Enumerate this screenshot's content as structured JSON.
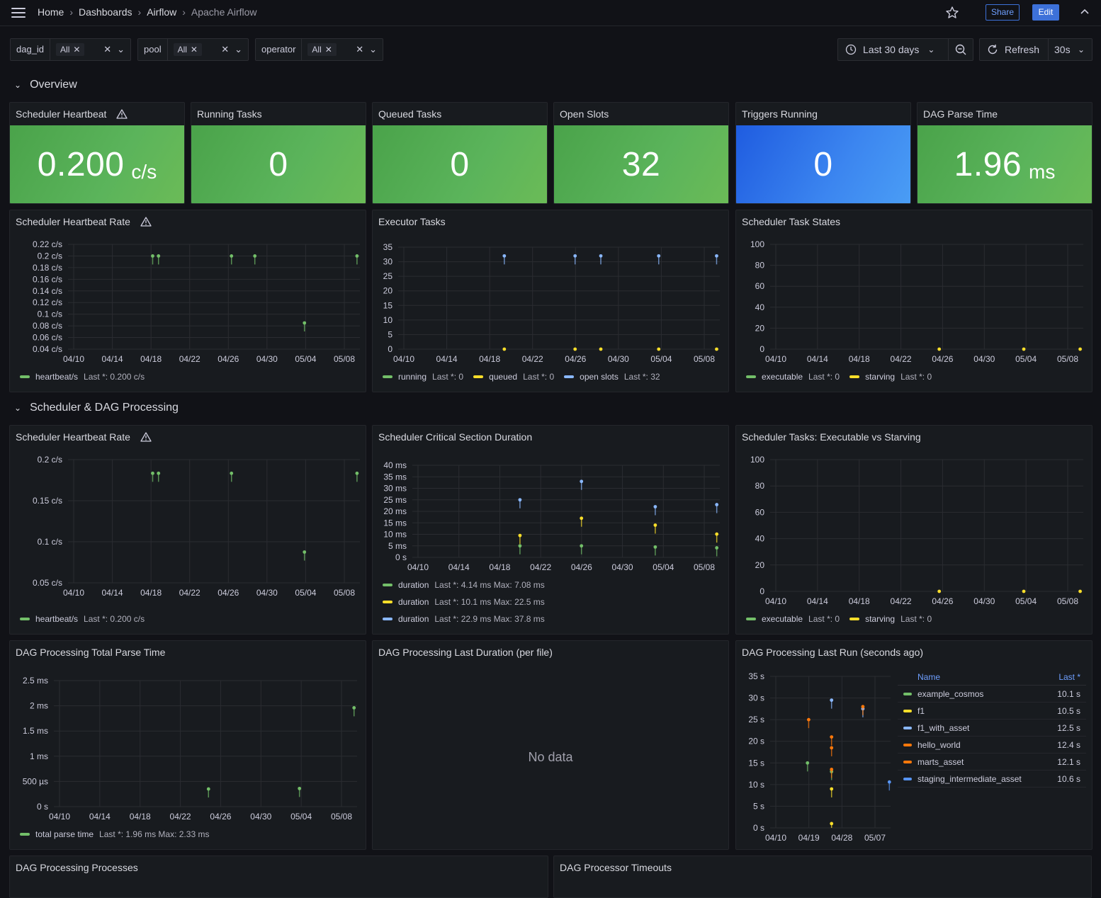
{
  "breadcrumbs": [
    "Home",
    "Dashboards",
    "Airflow",
    "Apache Airflow"
  ],
  "toolbar": {
    "share": "Share",
    "edit": "Edit",
    "time_range": "Last 30 days",
    "refresh": "Refresh",
    "interval": "30s"
  },
  "variables": [
    {
      "label": "dag_id",
      "value": "All"
    },
    {
      "label": "pool",
      "value": "All"
    },
    {
      "label": "operator",
      "value": "All"
    }
  ],
  "rows": {
    "overview": "Overview",
    "scheduler": "Scheduler & DAG Processing"
  },
  "stats": [
    {
      "title": "Scheduler Heartbeat",
      "value": "0.200",
      "unit": "c/s",
      "color": "green",
      "warning": true
    },
    {
      "title": "Running Tasks",
      "value": "0",
      "unit": "",
      "color": "green",
      "warning": false
    },
    {
      "title": "Queued Tasks",
      "value": "0",
      "unit": "",
      "color": "green",
      "warning": false
    },
    {
      "title": "Open Slots",
      "value": "32",
      "unit": "",
      "color": "green",
      "warning": false
    },
    {
      "title": "Triggers Running",
      "value": "0",
      "unit": "",
      "color": "blue",
      "warning": false
    },
    {
      "title": "DAG Parse Time",
      "value": "1.96",
      "unit": "ms",
      "color": "green",
      "warning": false
    }
  ],
  "colors": {
    "green": "#73bf69",
    "yellow": "#fade2a",
    "blue": "#8ab8ff",
    "orange": "#ff780a",
    "blue2": "#5794f2"
  },
  "chart_data": [
    {
      "id": "hb1",
      "type": "line",
      "title": "Scheduler Heartbeat Rate",
      "x": [
        "04/10",
        "04/14",
        "04/18",
        "04/22",
        "04/26",
        "04/30",
        "05/04",
        "05/08"
      ],
      "yticks": [
        "0.04 c/s",
        "0.06 c/s",
        "0.08 c/s",
        "0.1 c/s",
        "0.12 c/s",
        "0.14 c/s",
        "0.16 c/s",
        "0.18 c/s",
        "0.2 c/s",
        "0.22 c/s"
      ],
      "ylim": [
        0.04,
        0.22
      ],
      "series": [
        {
          "name": "heartbeat/s",
          "legend": "Last *: 0.200 c/s",
          "color": "#73bf69",
          "points": [
            [
              0.29,
              0.2
            ],
            [
              0.31,
              0.2
            ],
            [
              0.56,
              0.2
            ],
            [
              0.64,
              0.2
            ],
            [
              0.81,
              0.085
            ],
            [
              0.99,
              0.2
            ]
          ]
        }
      ]
    },
    {
      "id": "exec",
      "type": "line",
      "title": "Executor Tasks",
      "x": [
        "04/10",
        "04/14",
        "04/18",
        "04/22",
        "04/26",
        "04/30",
        "05/04",
        "05/08"
      ],
      "yticks": [
        "0",
        "5",
        "10",
        "15",
        "20",
        "25",
        "30",
        "35"
      ],
      "ylim": [
        0,
        35
      ],
      "series": [
        {
          "name": "running",
          "legend": "Last *: 0",
          "color": "#73bf69",
          "points": []
        },
        {
          "name": "queued",
          "legend": "Last *: 0",
          "color": "#fade2a",
          "points": [
            [
              0.33,
              0
            ],
            [
              0.55,
              0
            ],
            [
              0.63,
              0
            ],
            [
              0.81,
              0
            ],
            [
              0.99,
              0
            ]
          ]
        },
        {
          "name": "open slots",
          "legend": "Last *: 32",
          "color": "#8ab8ff",
          "points": [
            [
              0.33,
              32
            ],
            [
              0.55,
              32
            ],
            [
              0.63,
              32
            ],
            [
              0.81,
              32
            ],
            [
              0.99,
              32
            ]
          ]
        }
      ]
    },
    {
      "id": "states",
      "type": "line",
      "title": "Scheduler Task States",
      "x": [
        "04/10",
        "04/14",
        "04/18",
        "04/22",
        "04/26",
        "04/30",
        "05/04",
        "05/08"
      ],
      "yticks": [
        "0",
        "20",
        "40",
        "60",
        "80",
        "100"
      ],
      "ylim": [
        0,
        100
      ],
      "series": [
        {
          "name": "executable",
          "legend": "Last *: 0",
          "color": "#73bf69",
          "points": []
        },
        {
          "name": "starving",
          "legend": "Last *: 0",
          "color": "#fade2a",
          "points": [
            [
              0.54,
              0
            ],
            [
              0.81,
              0
            ],
            [
              0.99,
              0
            ]
          ]
        }
      ]
    },
    {
      "id": "hb2",
      "type": "line",
      "title": "Scheduler Heartbeat Rate",
      "x": [
        "04/10",
        "04/14",
        "04/18",
        "04/22",
        "04/26",
        "04/30",
        "05/04",
        "05/08"
      ],
      "yticks": [
        "0.05 c/s",
        "0.1 c/s",
        "0.15 c/s",
        "0.2 c/s"
      ],
      "ylim": [
        0.04,
        0.22
      ],
      "series": [
        {
          "name": "heartbeat/s",
          "legend": "Last *: 0.200 c/s",
          "color": "#73bf69",
          "points": [
            [
              0.29,
              0.2
            ],
            [
              0.31,
              0.2
            ],
            [
              0.56,
              0.2
            ],
            [
              0.81,
              0.085
            ],
            [
              0.99,
              0.2
            ]
          ]
        }
      ]
    },
    {
      "id": "crit",
      "type": "line",
      "title": "Scheduler Critical Section Duration",
      "x": [
        "04/10",
        "04/14",
        "04/18",
        "04/22",
        "04/26",
        "04/30",
        "05/04",
        "05/08"
      ],
      "yticks": [
        "0 s",
        "5 ms",
        "10 ms",
        "15 ms",
        "20 ms",
        "25 ms",
        "30 ms",
        "35 ms",
        "40 ms"
      ],
      "ylim": [
        0,
        40
      ],
      "series": [
        {
          "name": "duration",
          "legend": "Last *: 4.14 ms  Max: 7.08 ms",
          "color": "#73bf69",
          "points": [
            [
              0.35,
              5
            ],
            [
              0.55,
              5
            ],
            [
              0.79,
              4.5
            ],
            [
              0.99,
              4.14
            ]
          ]
        },
        {
          "name": "duration",
          "legend": "Last *: 10.1 ms  Max: 22.5 ms",
          "color": "#fade2a",
          "points": [
            [
              0.35,
              9.5
            ],
            [
              0.55,
              17
            ],
            [
              0.79,
              14
            ],
            [
              0.99,
              10.1
            ]
          ]
        },
        {
          "name": "duration",
          "legend": "Last *: 22.9 ms  Max: 37.8 ms",
          "color": "#8ab8ff",
          "points": [
            [
              0.35,
              25
            ],
            [
              0.55,
              33
            ],
            [
              0.79,
              22
            ],
            [
              0.99,
              22.9
            ]
          ]
        }
      ]
    },
    {
      "id": "starv",
      "type": "line",
      "title": "Scheduler Tasks: Executable vs Starving",
      "x": [
        "04/10",
        "04/14",
        "04/18",
        "04/22",
        "04/26",
        "04/30",
        "05/04",
        "05/08"
      ],
      "yticks": [
        "0",
        "20",
        "40",
        "60",
        "80",
        "100"
      ],
      "ylim": [
        0,
        100
      ],
      "series": [
        {
          "name": "executable",
          "legend": "Last *: 0",
          "color": "#73bf69",
          "points": []
        },
        {
          "name": "starving",
          "legend": "Last *: 0",
          "color": "#fade2a",
          "points": [
            [
              0.54,
              0
            ],
            [
              0.81,
              0
            ],
            [
              0.99,
              0
            ]
          ]
        }
      ]
    },
    {
      "id": "parse",
      "type": "line",
      "title": "DAG Processing Total Parse Time",
      "x": [
        "04/10",
        "04/14",
        "04/18",
        "04/22",
        "04/26",
        "04/30",
        "05/04",
        "05/08"
      ],
      "yticks": [
        "0 s",
        "500 µs",
        "1 ms",
        "1.5 ms",
        "2 ms",
        "2.5 ms"
      ],
      "ylim": [
        0,
        2.5
      ],
      "series": [
        {
          "name": "total parse time",
          "legend": "Last *: 1.96 ms  Max: 2.33 ms",
          "color": "#73bf69",
          "points": [
            [
              0.51,
              0.35
            ],
            [
              0.81,
              0.36
            ],
            [
              0.99,
              1.96
            ]
          ]
        }
      ]
    },
    {
      "id": "lastrun",
      "type": "line",
      "title": "DAG Processing Last Run (seconds ago)",
      "x": [
        "04/10",
        "04/19",
        "04/28",
        "05/07"
      ],
      "yticks": [
        "0 s",
        "5 s",
        "10 s",
        "15 s",
        "20 s",
        "25 s",
        "30 s",
        "35 s"
      ],
      "ylim": [
        0,
        35
      ],
      "series": [
        {
          "name": "example_cosmos",
          "legend": "10.1 s",
          "color": "#73bf69",
          "points": [
            [
              0.31,
              15
            ],
            [
              0.51,
              13
            ]
          ]
        },
        {
          "name": "f1",
          "legend": "10.5 s",
          "color": "#fade2a",
          "points": [
            [
              0.51,
              9
            ],
            [
              0.51,
              1
            ]
          ]
        },
        {
          "name": "f1_with_asset",
          "legend": "12.5 s",
          "color": "#8ab8ff",
          "points": [
            [
              0.51,
              29.5
            ],
            [
              0.77,
              27.5
            ]
          ]
        },
        {
          "name": "hello_world",
          "legend": "12.4 s",
          "color": "#ff780a",
          "points": [
            [
              0.32,
              25
            ],
            [
              0.51,
              21
            ],
            [
              0.77,
              28
            ]
          ]
        },
        {
          "name": "marts_asset",
          "legend": "12.1 s",
          "color": "#ff780a",
          "points": [
            [
              0.51,
              18.5
            ],
            [
              0.51,
              13.5
            ]
          ]
        },
        {
          "name": "staging_intermediate_asset",
          "legend": "10.6 s",
          "color": "#5794f2",
          "points": [
            [
              0.99,
              10.6
            ]
          ]
        }
      ]
    }
  ],
  "nodata_panel": {
    "title": "DAG Processing Last Duration (per file)",
    "message": "No data"
  },
  "lastrun_table": {
    "name_header": "Name",
    "last_header": "Last *"
  },
  "bottom_panels": [
    "DAG Processing Processes",
    "DAG Processor Timeouts"
  ]
}
